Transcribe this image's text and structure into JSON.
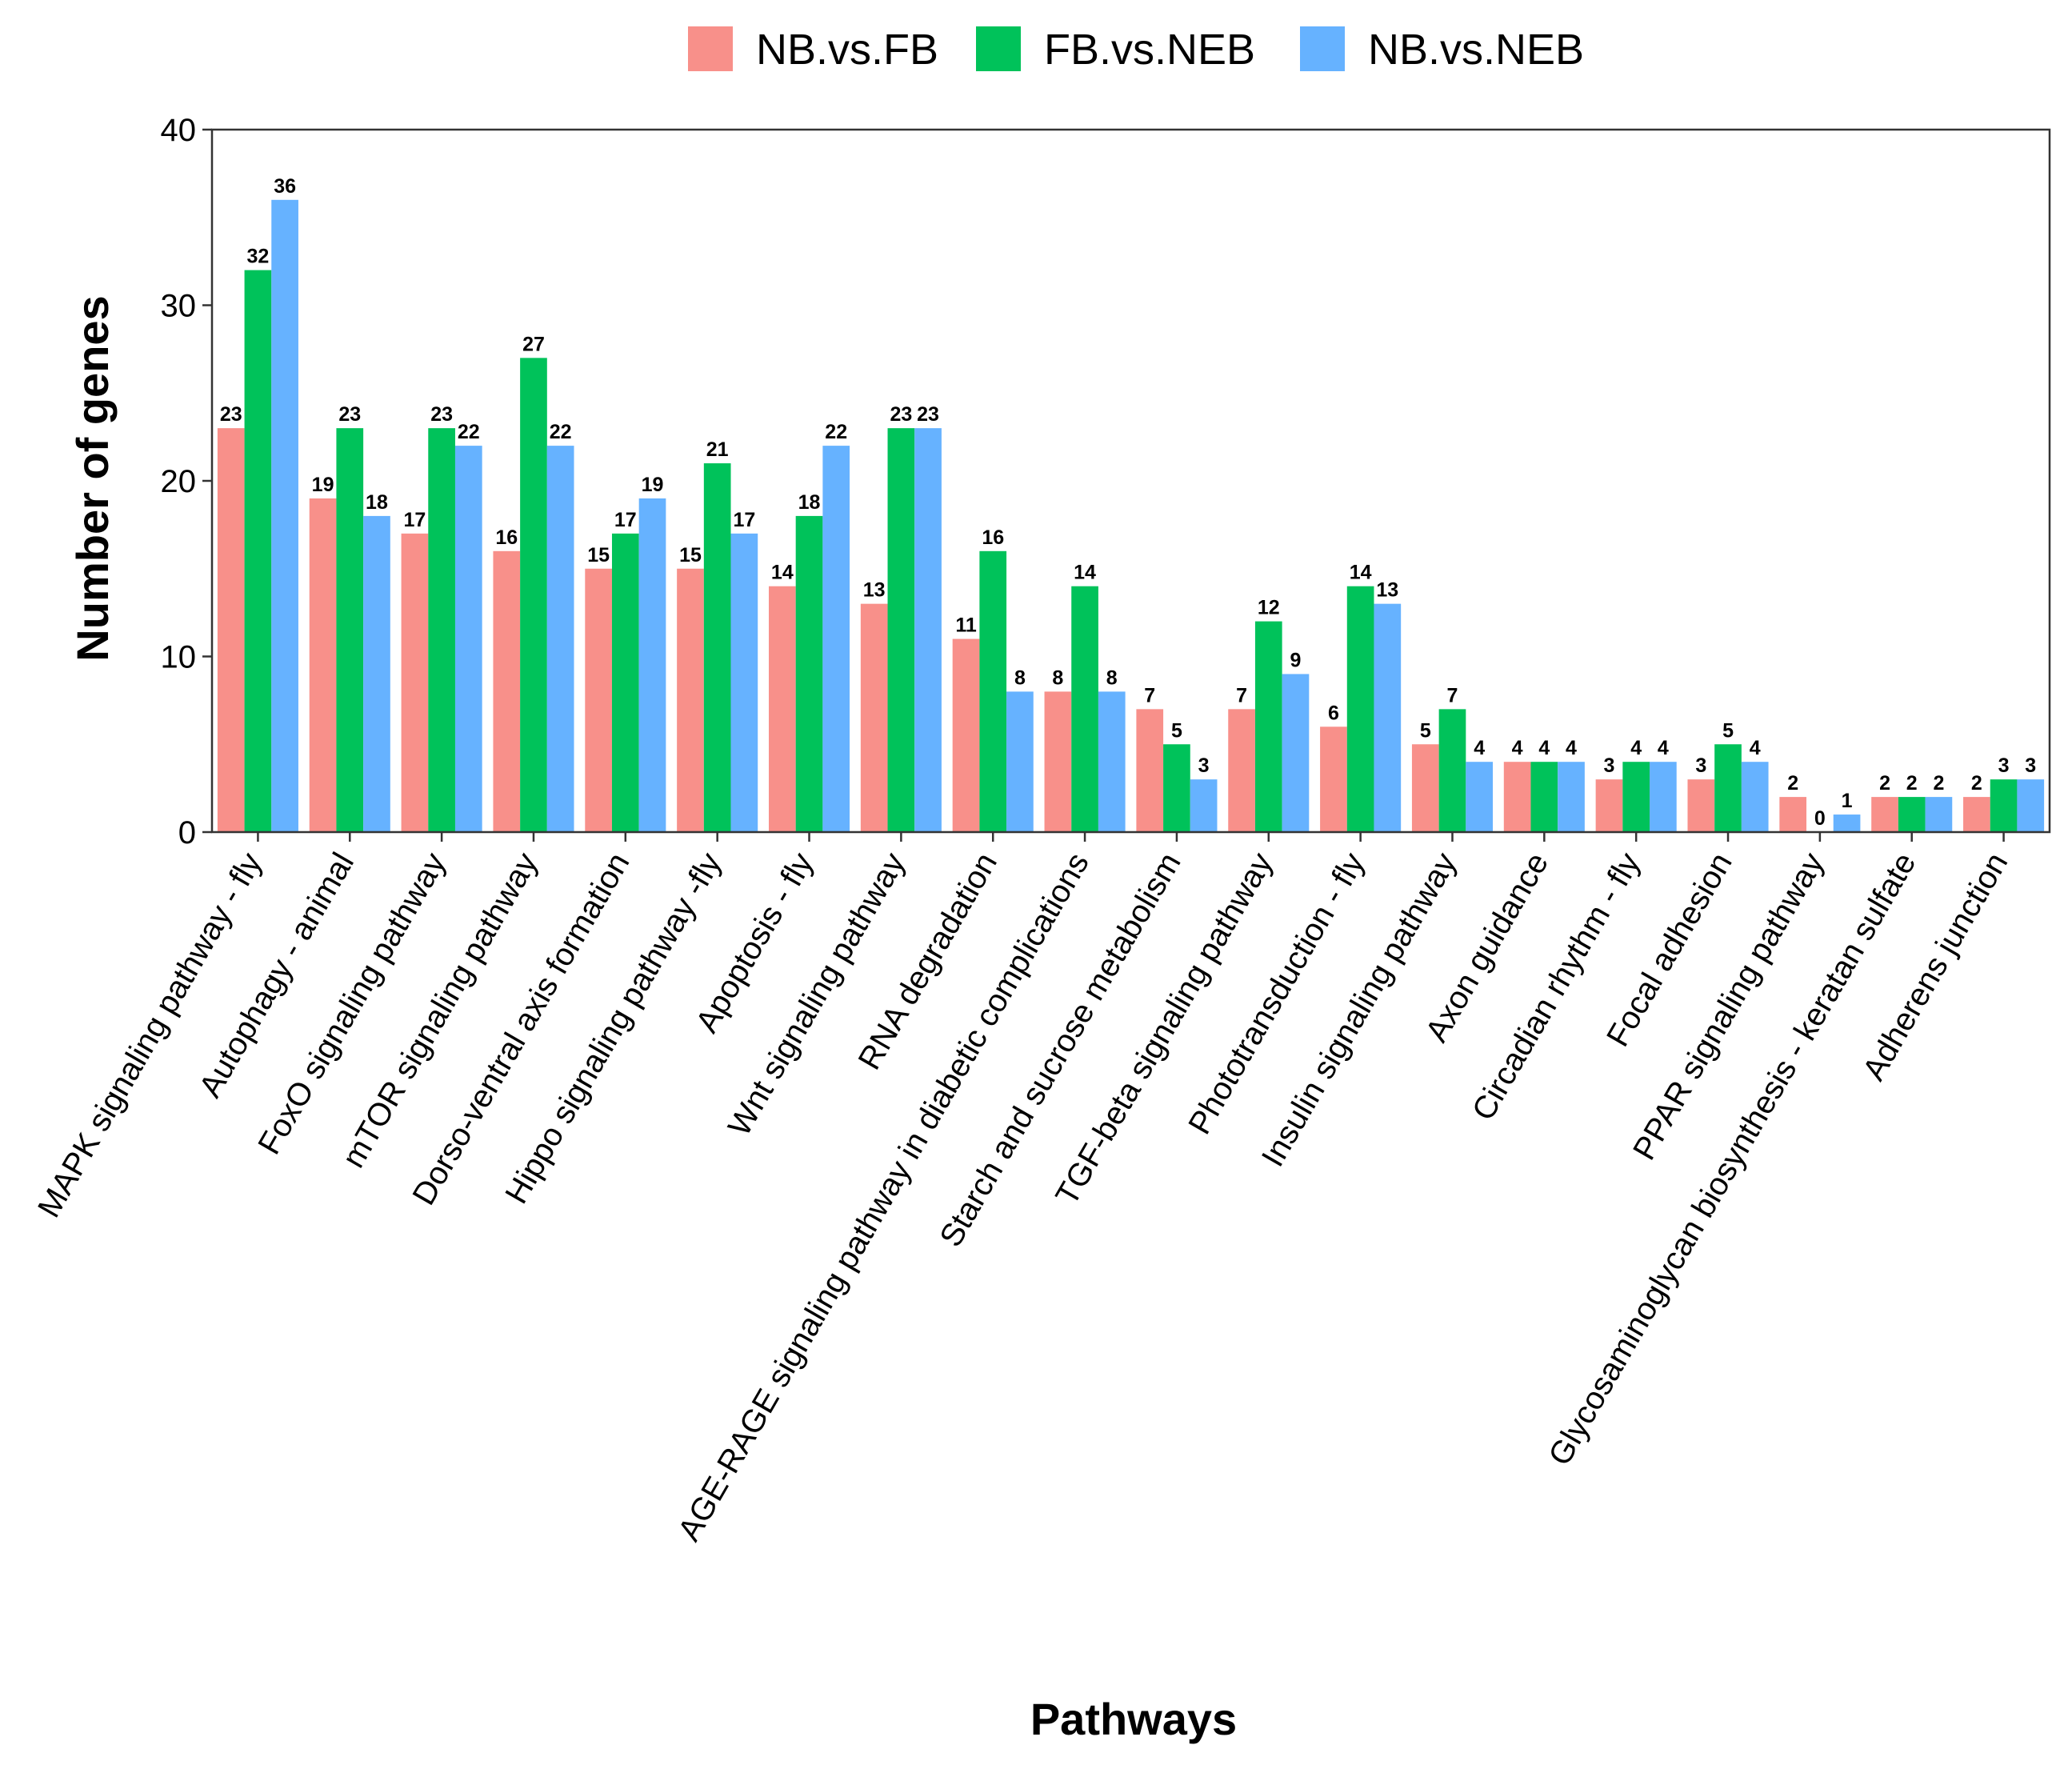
{
  "chart_data": {
    "type": "bar",
    "title": "",
    "xlabel": "Pathways",
    "ylabel": "Number of genes",
    "ylim": [
      0,
      40
    ],
    "yticks": [
      0,
      10,
      20,
      30,
      40
    ],
    "grid": false,
    "legend_position": "top",
    "categories": [
      "MAPK signaling pathway - fly",
      "Autophagy - animal",
      "FoxO signaling pathway",
      "mTOR signaling pathway",
      "Dorso-ventral axis formation",
      "Hippo signaling pathway -fly",
      "Apoptosis - fly",
      "Wnt signaling pathway",
      "RNA degradation",
      "AGE-RAGE signaling pathway in diabetic complications",
      "Starch and sucrose metabolism",
      "TGF-beta signaling pathway",
      "Phototransduction - fly",
      "Insulin signaling pathway",
      "Axon guidance",
      "Circadian rhythm - fly",
      "Focal adhesion",
      "PPAR signaling pathway",
      "Glycosaminoglycan biosynthesis - keratan sulfate",
      "Adherens junction"
    ],
    "series": [
      {
        "name": "NB.vs.FB",
        "color": "#F8908A",
        "values": [
          23,
          19,
          17,
          16,
          15,
          15,
          14,
          13,
          11,
          8,
          7,
          7,
          6,
          5,
          4,
          3,
          3,
          2,
          2,
          2
        ]
      },
      {
        "name": "FB.vs.NEB",
        "color": "#00C25A",
        "values": [
          32,
          23,
          23,
          27,
          17,
          21,
          18,
          23,
          16,
          14,
          5,
          12,
          14,
          7,
          4,
          4,
          5,
          0,
          2,
          3
        ]
      },
      {
        "name": "NB.vs.NEB",
        "color": "#66B2FF",
        "values": [
          36,
          18,
          22,
          22,
          19,
          17,
          22,
          23,
          8,
          8,
          3,
          9,
          13,
          4,
          4,
          4,
          4,
          1,
          2,
          3
        ]
      }
    ]
  }
}
